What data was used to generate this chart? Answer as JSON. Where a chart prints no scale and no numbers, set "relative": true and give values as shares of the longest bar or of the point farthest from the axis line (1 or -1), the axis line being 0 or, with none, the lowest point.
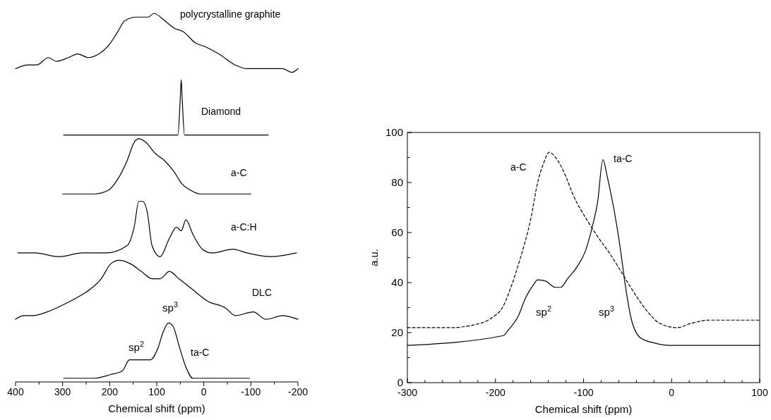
{
  "chart_data": [
    {
      "type": "line",
      "relative": true,
      "xlabel": "Chemical shift (ppm)",
      "xlim": [
        400,
        -200
      ],
      "xticks": [
        400,
        {
          "value": 350,
          "label": null
        },
        300,
        {
          "value": 250,
          "label": null
        },
        200,
        {
          "value": 150,
          "label": null
        },
        100,
        {
          "value": 50,
          "label": null
        },
        0,
        {
          "value": -50,
          "label": null
        },
        -100,
        {
          "value": -150,
          "label": null
        },
        -200
      ],
      "series": [
        {
          "name": "polycrystalline graphite",
          "color": "#000000",
          "x": [
            400,
            373,
            355,
            330,
            313,
            288,
            268,
            245,
            223,
            198,
            183,
            168,
            143,
            118,
            106,
            83,
            63,
            43,
            18,
            -2,
            -32,
            -67,
            -92,
            -117,
            -142,
            -167,
            -187,
            -200
          ],
          "values": [
            0.85,
            0.86,
            0.86,
            0.88,
            0.87,
            0.88,
            0.89,
            0.88,
            0.89,
            0.92,
            0.95,
            0.98,
            0.99,
            0.99,
            1.0,
            0.98,
            0.96,
            0.95,
            0.92,
            0.91,
            0.89,
            0.86,
            0.85,
            0.85,
            0.85,
            0.85,
            0.84,
            0.85
          ]
        },
        {
          "name": "Diamond",
          "color": "#000000",
          "x": [
            298,
            55,
            50,
            48,
            46,
            41,
            -137
          ],
          "values": [
            0.67,
            0.67,
            0.77,
            0.82,
            0.77,
            0.67,
            0.67
          ]
        },
        {
          "name": "a-C",
          "color": "#000000",
          "x": [
            300,
            233,
            203,
            183,
            163,
            148,
            138,
            123,
            103,
            83,
            63,
            48,
            28,
            8,
            -17,
            -67,
            -100
          ],
          "values": [
            0.51,
            0.51,
            0.52,
            0.55,
            0.6,
            0.65,
            0.66,
            0.65,
            0.62,
            0.6,
            0.57,
            0.54,
            0.52,
            0.51,
            0.51,
            0.51,
            0.51
          ]
        },
        {
          "name": "a-C:H",
          "color": "#000000",
          "x": [
            395,
            358,
            308,
            258,
            208,
            163,
            148,
            138,
            130,
            120,
            110,
            93,
            73,
            58,
            48,
            38,
            23,
            3,
            -17,
            -62,
            -92,
            -142,
            -197
          ],
          "values": [
            0.35,
            0.35,
            0.34,
            0.35,
            0.35,
            0.37,
            0.42,
            0.49,
            0.49,
            0.46,
            0.37,
            0.34,
            0.39,
            0.42,
            0.41,
            0.44,
            0.4,
            0.36,
            0.35,
            0.36,
            0.35,
            0.34,
            0.35
          ]
        },
        {
          "name": "DLC",
          "color": "#000000",
          "x": [
            400,
            383,
            363,
            333,
            298,
            268,
            243,
            218,
            198,
            180,
            155,
            133,
            110,
            93,
            73,
            53,
            23,
            -7,
            -47,
            -67,
            -105,
            -132,
            -167,
            -200
          ],
          "values": [
            0.17,
            0.18,
            0.18,
            0.19,
            0.21,
            0.23,
            0.25,
            0.28,
            0.32,
            0.33,
            0.32,
            0.3,
            0.28,
            0.28,
            0.3,
            0.28,
            0.25,
            0.22,
            0.2,
            0.18,
            0.19,
            0.17,
            0.18,
            0.17
          ]
        },
        {
          "name": "ta-C",
          "color": "#000000",
          "x": [
            298,
            233,
            198,
            173,
            158,
            145,
            128,
            113,
            98,
            85,
            75,
            65,
            53,
            38,
            23,
            -17,
            -97
          ],
          "values": [
            0.01,
            0.01,
            0.02,
            0.03,
            0.06,
            0.06,
            0.06,
            0.06,
            0.09,
            0.14,
            0.16,
            0.15,
            0.1,
            0.04,
            0.01,
            0.01,
            0.01
          ]
        }
      ],
      "annotations": [
        "sp$^{2}$",
        "sp$^{3}$"
      ]
    },
    {
      "type": "line",
      "xlabel": "Chemical shift (ppm)",
      "ylabel": "a.u.",
      "xlim": [
        -300,
        100
      ],
      "ylim": [
        0,
        100
      ],
      "xticks": [
        -300,
        {
          "value": -280,
          "label": null
        },
        {
          "value": -260,
          "label": null
        },
        {
          "value": -240,
          "label": null
        },
        {
          "value": -220,
          "label": null
        },
        -200,
        {
          "value": -180,
          "label": null
        },
        {
          "value": -160,
          "label": null
        },
        {
          "value": -140,
          "label": null
        },
        {
          "value": -120,
          "label": null
        },
        -100,
        {
          "value": -80,
          "label": null
        },
        {
          "value": -60,
          "label": null
        },
        {
          "value": -40,
          "label": null
        },
        {
          "value": -20,
          "label": null
        },
        0,
        {
          "value": 20,
          "label": null
        },
        {
          "value": 40,
          "label": null
        },
        {
          "value": 60,
          "label": null
        },
        {
          "value": 80,
          "label": null
        },
        100
      ],
      "yticks": [
        0,
        {
          "value": 10,
          "label": null
        },
        20,
        {
          "value": 30,
          "label": null
        },
        40,
        {
          "value": 50,
          "label": null
        },
        60,
        {
          "value": 70,
          "label": null
        },
        80,
        {
          "value": 90,
          "label": null
        },
        100
      ],
      "series": [
        {
          "name": "a-C",
          "color": "#000000",
          "line_style": "dashed",
          "x": [
            -300,
            -251,
            -222,
            -205,
            -191,
            -183,
            -172,
            -160,
            -152,
            -146,
            -139,
            -132,
            -121,
            -112,
            -95,
            -84,
            -70,
            -56,
            -42,
            -28,
            -14,
            6,
            23,
            43,
            66,
            100
          ],
          "values": [
            22.0,
            22.0,
            23.3,
            25.7,
            30.7,
            37.6,
            49.5,
            65.3,
            80.2,
            87.1,
            92.1,
            90.1,
            83.2,
            75.2,
            64.4,
            58.4,
            51.5,
            43.6,
            35.6,
            28.7,
            23.8,
            22.0,
            23.8,
            25.0,
            25.0,
            25.0
          ]
        },
        {
          "name": "ta-C",
          "color": "#000000",
          "line_style": "solid",
          "x": [
            -300,
            -191,
            -186,
            -174,
            -166,
            -157,
            -152,
            -143,
            -132,
            -126,
            -118,
            -107,
            -98,
            -90,
            -84,
            -78,
            -73,
            -66,
            -59,
            -52,
            -46,
            -35,
            -19,
            -2,
            100
          ],
          "values": [
            14.9,
            18.8,
            20.8,
            26.7,
            33.7,
            39.1,
            41.1,
            40.6,
            38.1,
            38.1,
            41.6,
            46.5,
            52.5,
            62.4,
            72.3,
            89.1,
            82.2,
            70.3,
            55.4,
            37.6,
            25.7,
            17.8,
            15.8,
            14.9,
            14.9
          ]
        }
      ],
      "annotations": [
        "sp$^{2}$",
        "sp$^{3}$"
      ]
    }
  ]
}
